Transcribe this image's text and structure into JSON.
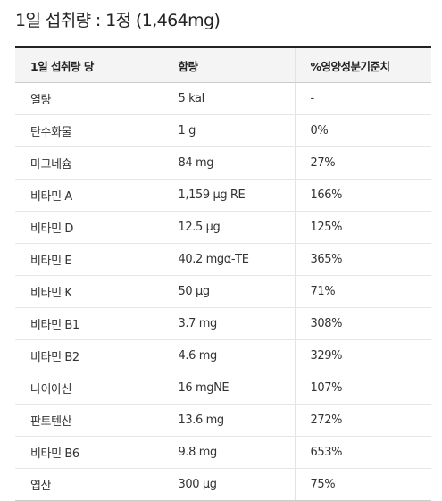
{
  "title": "1일 섭취량 : 1정 (1,464mg)",
  "table": {
    "headers": [
      "1일 섭취량 당",
      "함량",
      "%영양성분기준치"
    ],
    "rows": [
      [
        "열량",
        "5 kal",
        "-"
      ],
      [
        "탄수화물",
        "1 g",
        "0%"
      ],
      [
        "마그네슘",
        "84 mg",
        "27%"
      ],
      [
        "비타민 A",
        "1,159 µg RE",
        "166%"
      ],
      [
        "비타민 D",
        "12.5 µg",
        "125%"
      ],
      [
        "비타민 E",
        "40.2 mgα-TE",
        "365%"
      ],
      [
        "비타민 K",
        "50 µg",
        "71%"
      ],
      [
        "비타민 B1",
        "3.7 mg",
        "308%"
      ],
      [
        "비타민 B2",
        "4.6 mg",
        "329%"
      ],
      [
        "나이아신",
        "16 mgNE",
        "107%"
      ],
      [
        "판토텐산",
        "13.6 mg",
        "272%"
      ],
      [
        "비타민 B6",
        "9.8 mg",
        "653%"
      ],
      [
        "엽산",
        "300 µg",
        "75%"
      ]
    ]
  }
}
